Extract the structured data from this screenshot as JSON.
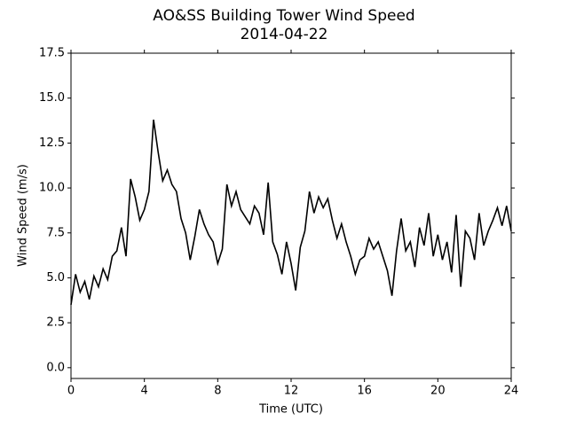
{
  "chart_data": {
    "type": "line",
    "title": "AO&SS Building Tower Wind Speed",
    "subtitle": "2014-04-22",
    "x_label": "Time (UTC)",
    "y_label": "Wind Speed (m/s)",
    "xlim": [
      0,
      24
    ],
    "xticks": [
      0,
      4,
      8,
      12,
      16,
      20,
      24
    ],
    "ylim": [
      -0.6,
      17.5
    ],
    "yticks": [
      {
        "value": 0,
        "label": "0.0"
      },
      2.5,
      {
        "value": 5,
        "label": "5.0"
      },
      7.5,
      {
        "value": 10,
        "label": "10.0"
      },
      12.5,
      {
        "value": 15,
        "label": "15.0"
      },
      17.5
    ],
    "x": [
      0,
      0.25,
      0.5,
      0.75,
      1,
      1.25,
      1.5,
      1.75,
      2,
      2.25,
      2.5,
      2.75,
      3,
      3.25,
      3.5,
      3.75,
      4,
      4.25,
      4.5,
      4.75,
      5,
      5.25,
      5.5,
      5.75,
      6,
      6.25,
      6.5,
      6.75,
      7,
      7.25,
      7.5,
      7.75,
      8,
      8.25,
      8.5,
      8.75,
      9,
      9.25,
      9.5,
      9.75,
      10,
      10.25,
      10.5,
      10.75,
      11,
      11.25,
      11.5,
      11.75,
      12,
      12.25,
      12.5,
      12.75,
      13,
      13.25,
      13.5,
      13.75,
      14,
      14.25,
      14.5,
      14.75,
      15,
      15.25,
      15.5,
      15.75,
      16,
      16.25,
      16.5,
      16.75,
      17,
      17.25,
      17.5,
      17.75,
      18,
      18.25,
      18.5,
      18.75,
      19,
      19.25,
      19.5,
      19.75,
      20,
      20.25,
      20.5,
      20.75,
      21,
      21.25,
      21.5,
      21.75,
      22,
      22.25,
      22.5,
      22.75,
      23,
      23.25,
      23.5,
      23.75,
      24
    ],
    "series": [
      {
        "color": "#000000",
        "values": [
          3.5,
          5.2,
          4.2,
          4.8,
          3.8,
          5.1,
          4.5,
          5.5,
          4.9,
          6.2,
          6.5,
          7.8,
          6.2,
          10.5,
          9.5,
          8.2,
          8.8,
          9.8,
          13.8,
          12.0,
          10.4,
          11.0,
          10.2,
          9.8,
          8.3,
          7.5,
          6.0,
          7.3,
          8.8,
          8.0,
          7.4,
          7.0,
          5.8,
          6.6,
          10.2,
          9.0,
          9.8,
          8.8,
          8.4,
          8.0,
          9.0,
          8.6,
          7.4,
          10.3,
          7.0,
          6.3,
          5.2,
          7.0,
          5.8,
          4.3,
          6.7,
          7.6,
          9.8,
          8.6,
          9.5,
          8.9,
          9.4,
          8.2,
          7.2,
          8.0,
          7.0,
          6.2,
          5.2,
          6.0,
          6.2,
          7.2,
          6.6,
          7.0,
          6.2,
          5.4,
          4.0,
          6.5,
          8.3,
          6.5,
          7.0,
          5.6,
          7.8,
          6.8,
          8.6,
          6.2,
          7.4,
          6.0,
          7.0,
          5.3,
          8.5,
          4.5,
          7.6,
          7.2,
          6.0,
          8.6,
          6.8,
          7.6,
          8.2,
          8.9,
          7.9,
          9.0,
          7.6
        ]
      }
    ]
  }
}
